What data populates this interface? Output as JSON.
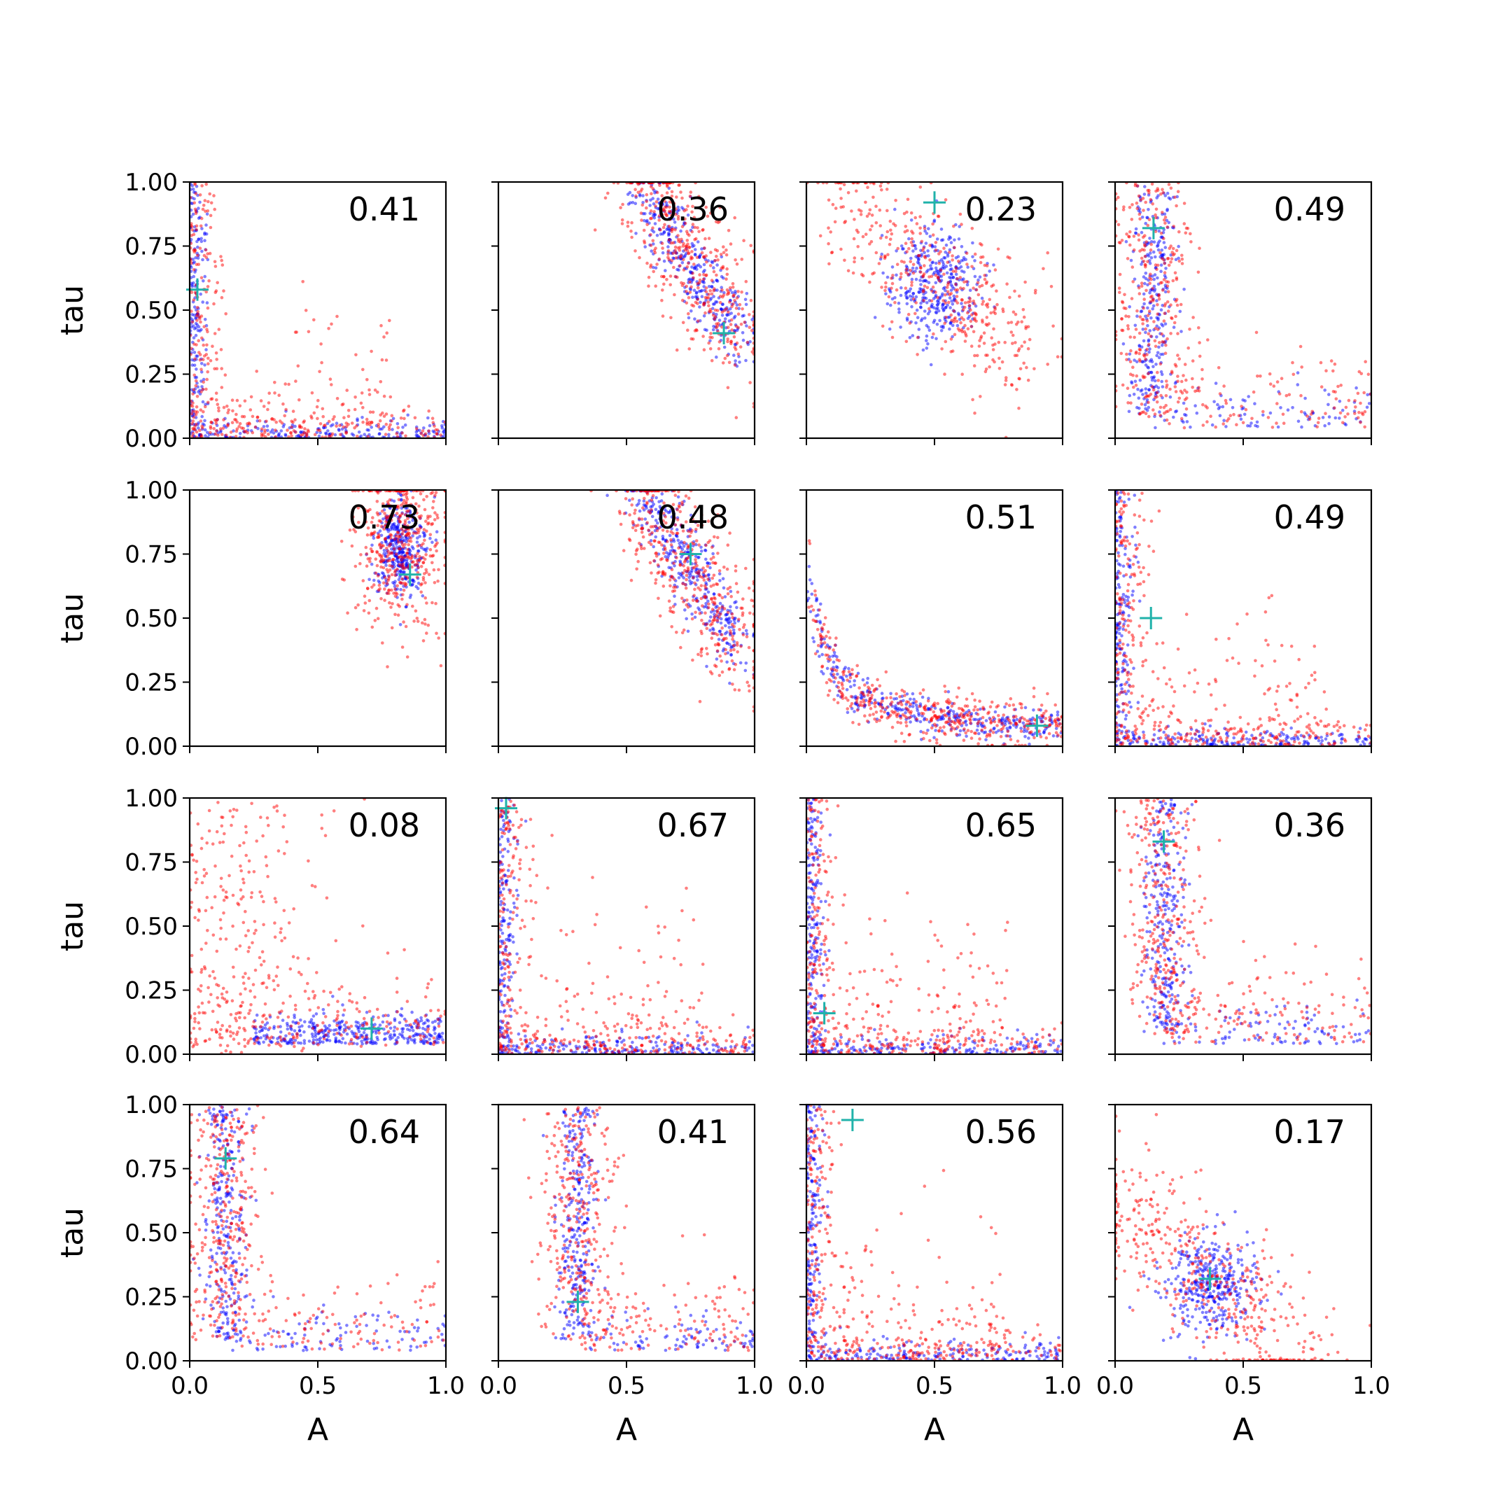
{
  "figure": {
    "xlabel": "A",
    "ylabel": "tau",
    "rows": 4,
    "cols": 4,
    "shared_x": true,
    "shared_y": true
  },
  "chart_data": [
    {
      "type": "scatter",
      "label": "0.41",
      "xlim": [
        0,
        1
      ],
      "ylim": [
        0,
        1
      ],
      "xticks": [
        "0.0",
        "0.5",
        "1.0"
      ],
      "yticks": [
        "0.00",
        "0.25",
        "0.50",
        "0.75",
        "1.00"
      ],
      "marker": {
        "x": 0.03,
        "y": 0.58
      },
      "pattern": "L"
    },
    {
      "type": "scatter",
      "label": "0.36",
      "xlim": [
        0,
        1
      ],
      "ylim": [
        0,
        1
      ],
      "xticks": [
        "0.0",
        "0.5",
        "1.0"
      ],
      "yticks": [
        "0.00",
        "0.25",
        "0.50",
        "0.75",
        "1.00"
      ],
      "marker": {
        "x": 0.88,
        "y": 0.41
      },
      "pattern": "blob-upper-right"
    },
    {
      "type": "scatter",
      "label": "0.23",
      "xlim": [
        0,
        1
      ],
      "ylim": [
        0,
        1
      ],
      "xticks": [
        "0.0",
        "0.5",
        "1.0"
      ],
      "yticks": [
        "0.00",
        "0.25",
        "0.50",
        "0.75",
        "1.00"
      ],
      "marker": {
        "x": 0.5,
        "y": 0.92
      },
      "pattern": "diagonal-center"
    },
    {
      "type": "scatter",
      "label": "0.49",
      "xlim": [
        0,
        1
      ],
      "ylim": [
        0,
        1
      ],
      "xticks": [
        "0.0",
        "0.5",
        "1.0"
      ],
      "yticks": [
        "0.00",
        "0.25",
        "0.50",
        "0.75",
        "1.00"
      ],
      "marker": {
        "x": 0.15,
        "y": 0.82
      },
      "pattern": "vertical-band"
    },
    {
      "type": "scatter",
      "label": "0.73",
      "xlim": [
        0,
        1
      ],
      "ylim": [
        0,
        1
      ],
      "xticks": [
        "0.0",
        "0.5",
        "1.0"
      ],
      "yticks": [
        "0.00",
        "0.25",
        "0.50",
        "0.75",
        "1.00"
      ],
      "marker": {
        "x": 0.86,
        "y": 0.67
      },
      "pattern": "corner-upper-right"
    },
    {
      "type": "scatter",
      "label": "0.48",
      "xlim": [
        0,
        1
      ],
      "ylim": [
        0,
        1
      ],
      "xticks": [
        "0.0",
        "0.5",
        "1.0"
      ],
      "yticks": [
        "0.00",
        "0.25",
        "0.50",
        "0.75",
        "1.00"
      ],
      "marker": {
        "x": 0.75,
        "y": 0.75
      },
      "pattern": "blob-upper-right"
    },
    {
      "type": "scatter",
      "label": "0.51",
      "xlim": [
        0,
        1
      ],
      "ylim": [
        0,
        1
      ],
      "xticks": [
        "0.0",
        "0.5",
        "1.0"
      ],
      "yticks": [
        "0.00",
        "0.25",
        "0.50",
        "0.75",
        "1.00"
      ],
      "marker": {
        "x": 0.9,
        "y": 0.08
      },
      "pattern": "hyperbolic"
    },
    {
      "type": "scatter",
      "label": "0.49",
      "xlim": [
        0,
        1
      ],
      "ylim": [
        0,
        1
      ],
      "xticks": [
        "0.0",
        "0.5",
        "1.0"
      ],
      "yticks": [
        "0.00",
        "0.25",
        "0.50",
        "0.75",
        "1.00"
      ],
      "marker": {
        "x": 0.14,
        "y": 0.5
      },
      "pattern": "L"
    },
    {
      "type": "scatter",
      "label": "0.08",
      "xlim": [
        0,
        1
      ],
      "ylim": [
        0,
        1
      ],
      "xticks": [
        "0.0",
        "0.5",
        "1.0"
      ],
      "yticks": [
        "0.00",
        "0.25",
        "0.50",
        "0.75",
        "1.00"
      ],
      "marker": {
        "x": 0.71,
        "y": 0.1
      },
      "pattern": "bottom-band"
    },
    {
      "type": "scatter",
      "label": "0.67",
      "xlim": [
        0,
        1
      ],
      "ylim": [
        0,
        1
      ],
      "xticks": [
        "0.0",
        "0.5",
        "1.0"
      ],
      "yticks": [
        "0.00",
        "0.25",
        "0.50",
        "0.75",
        "1.00"
      ],
      "marker": {
        "x": 0.03,
        "y": 0.96
      },
      "pattern": "L"
    },
    {
      "type": "scatter",
      "label": "0.65",
      "xlim": [
        0,
        1
      ],
      "ylim": [
        0,
        1
      ],
      "xticks": [
        "0.0",
        "0.5",
        "1.0"
      ],
      "yticks": [
        "0.00",
        "0.25",
        "0.50",
        "0.75",
        "1.00"
      ],
      "marker": {
        "x": 0.07,
        "y": 0.16
      },
      "pattern": "L"
    },
    {
      "type": "scatter",
      "label": "0.36",
      "xlim": [
        0,
        1
      ],
      "ylim": [
        0,
        1
      ],
      "xticks": [
        "0.0",
        "0.5",
        "1.0"
      ],
      "yticks": [
        "0.00",
        "0.25",
        "0.50",
        "0.75",
        "1.00"
      ],
      "marker": {
        "x": 0.19,
        "y": 0.83
      },
      "pattern": "vertical-band"
    },
    {
      "type": "scatter",
      "label": "0.64",
      "xlim": [
        0,
        1
      ],
      "ylim": [
        0,
        1
      ],
      "xticks": [
        "0.0",
        "0.5",
        "1.0"
      ],
      "yticks": [
        "0.00",
        "0.25",
        "0.50",
        "0.75",
        "1.00"
      ],
      "marker": {
        "x": 0.14,
        "y": 0.79
      },
      "pattern": "vertical-band"
    },
    {
      "type": "scatter",
      "label": "0.41",
      "xlim": [
        0,
        1
      ],
      "ylim": [
        0,
        1
      ],
      "xticks": [
        "0.0",
        "0.5",
        "1.0"
      ],
      "yticks": [
        "0.00",
        "0.25",
        "0.50",
        "0.75",
        "1.00"
      ],
      "marker": {
        "x": 0.31,
        "y": 0.23
      },
      "pattern": "vertical-band"
    },
    {
      "type": "scatter",
      "label": "0.56",
      "xlim": [
        0,
        1
      ],
      "ylim": [
        0,
        1
      ],
      "xticks": [
        "0.0",
        "0.5",
        "1.0"
      ],
      "yticks": [
        "0.00",
        "0.25",
        "0.50",
        "0.75",
        "1.00"
      ],
      "marker": {
        "x": 0.18,
        "y": 0.94
      },
      "pattern": "L"
    },
    {
      "type": "scatter",
      "label": "0.17",
      "xlim": [
        0,
        1
      ],
      "ylim": [
        0,
        1
      ],
      "xticks": [
        "0.0",
        "0.5",
        "1.0"
      ],
      "yticks": [
        "0.00",
        "0.25",
        "0.50",
        "0.75",
        "1.00"
      ],
      "marker": {
        "x": 0.37,
        "y": 0.32
      },
      "pattern": "diagonal-center"
    }
  ],
  "colors": {
    "series_a": "#0000ff",
    "series_b": "#ff0000",
    "marker": "#20b2aa",
    "axes": "#000000",
    "background": "#ffffff"
  }
}
